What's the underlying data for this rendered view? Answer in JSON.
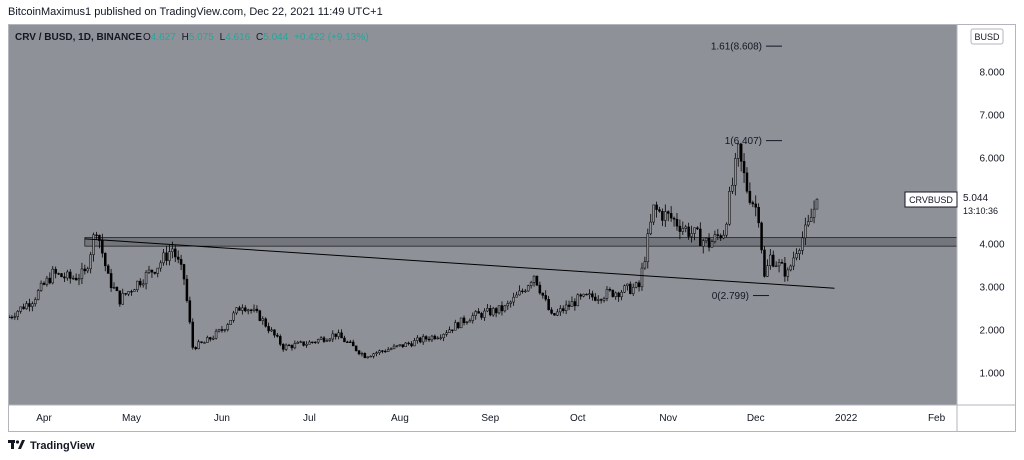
{
  "header": {
    "published_text": "BitcoinMaximus1 published on TradingView.com, Dec 22, 2021 11:49 UTC+1"
  },
  "legend": {
    "symbol": "CRV / BUSD, 1D, BINANCE",
    "o_label": "O",
    "o_value": "4.627",
    "h_label": "H",
    "h_value": "5.075",
    "l_label": "L",
    "l_value": "4.616",
    "c_label": "C",
    "c_value": "5.044",
    "change": "+0.422 (+9.13%)"
  },
  "currency_badge": "BUSD",
  "price_tag": {
    "symbol": "CRVBUSD",
    "price": "5.044",
    "countdown": "13:10:36"
  },
  "footer": {
    "brand": "TradingView"
  },
  "colors": {
    "plot_bg": "#8f9198",
    "candle": "#000000",
    "axis_text": "#131722",
    "zone_fill": "#6f7178",
    "trendline": "#000000"
  },
  "chart_data": {
    "type": "candlestick",
    "title": "",
    "y_ticks": [
      8.0,
      7.0,
      6.0,
      5.0,
      4.0,
      3.0,
      2.0,
      1.0
    ],
    "y_tick_labels": [
      "8.000",
      "7.000",
      "6.000",
      "5.000",
      "4.000",
      "3.000",
      "2.000",
      "1.000"
    ],
    "ylim": [
      0.25,
      9.1
    ],
    "x_range": [
      "2021-03-20",
      "2022-02-08"
    ],
    "x_ticks": [
      {
        "date": "2021-04-01",
        "label": "Apr"
      },
      {
        "date": "2021-05-01",
        "label": "May"
      },
      {
        "date": "2021-06-01",
        "label": "Jun"
      },
      {
        "date": "2021-07-01",
        "label": "Jul"
      },
      {
        "date": "2021-08-01",
        "label": "Aug"
      },
      {
        "date": "2021-09-01",
        "label": "Sep"
      },
      {
        "date": "2021-10-01",
        "label": "Oct"
      },
      {
        "date": "2021-11-01",
        "label": "Nov"
      },
      {
        "date": "2021-12-01",
        "label": "Dec"
      },
      {
        "date": "2022-01-01",
        "label": "2022"
      },
      {
        "date": "2022-02-01",
        "label": "Feb"
      }
    ],
    "price_path": [
      {
        "date": "2021-03-20",
        "close": 2.3
      },
      {
        "date": "2021-03-28",
        "close": 2.7
      },
      {
        "date": "2021-04-04",
        "close": 3.3
      },
      {
        "date": "2021-04-10",
        "close": 3.2
      },
      {
        "date": "2021-04-15",
        "close": 3.3
      },
      {
        "date": "2021-04-19",
        "close": 4.4
      },
      {
        "date": "2021-04-23",
        "close": 3.2
      },
      {
        "date": "2021-04-27",
        "close": 2.7
      },
      {
        "date": "2021-05-03",
        "close": 3.1
      },
      {
        "date": "2021-05-10",
        "close": 3.5
      },
      {
        "date": "2021-05-15",
        "close": 3.9
      },
      {
        "date": "2021-05-19",
        "close": 3.2
      },
      {
        "date": "2021-05-22",
        "close": 1.6
      },
      {
        "date": "2021-05-26",
        "close": 1.7
      },
      {
        "date": "2021-06-01",
        "close": 2.0
      },
      {
        "date": "2021-06-08",
        "close": 2.6
      },
      {
        "date": "2021-06-14",
        "close": 2.3
      },
      {
        "date": "2021-06-22",
        "close": 1.6
      },
      {
        "date": "2021-07-01",
        "close": 1.7
      },
      {
        "date": "2021-07-10",
        "close": 1.9
      },
      {
        "date": "2021-07-20",
        "close": 1.4
      },
      {
        "date": "2021-07-31",
        "close": 1.6
      },
      {
        "date": "2021-08-15",
        "close": 1.9
      },
      {
        "date": "2021-08-25",
        "close": 2.3
      },
      {
        "date": "2021-09-06",
        "close": 2.5
      },
      {
        "date": "2021-09-12",
        "close": 2.9
      },
      {
        "date": "2021-09-16",
        "close": 3.3
      },
      {
        "date": "2021-09-22",
        "close": 2.3
      },
      {
        "date": "2021-10-01",
        "close": 2.7
      },
      {
        "date": "2021-10-15",
        "close": 2.9
      },
      {
        "date": "2021-10-22",
        "close": 3.0
      },
      {
        "date": "2021-10-27",
        "close": 4.8
      },
      {
        "date": "2021-11-02",
        "close": 4.6
      },
      {
        "date": "2021-11-08",
        "close": 4.3
      },
      {
        "date": "2021-11-15",
        "close": 4.0
      },
      {
        "date": "2021-11-20",
        "close": 4.3
      },
      {
        "date": "2021-11-25",
        "close": 6.1
      },
      {
        "date": "2021-11-28",
        "close": 5.3
      },
      {
        "date": "2021-12-02",
        "close": 4.7
      },
      {
        "date": "2021-12-04",
        "close": 3.2
      },
      {
        "date": "2021-12-06",
        "close": 3.7
      },
      {
        "date": "2021-12-09",
        "close": 3.5
      },
      {
        "date": "2021-12-12",
        "close": 3.3
      },
      {
        "date": "2021-12-15",
        "close": 3.9
      },
      {
        "date": "2021-12-19",
        "close": 4.4
      },
      {
        "date": "2021-12-22",
        "close": 5.044
      }
    ],
    "resistance_zone": {
      "low": 3.95,
      "high": 4.15,
      "from": "2021-04-15",
      "to": "2022-02-08"
    },
    "trendline": {
      "from": {
        "date": "2021-04-15",
        "value": 4.12
      },
      "to": {
        "date": "2021-12-28",
        "value": 2.97
      }
    },
    "fib_levels": [
      {
        "label": "1.61(8.608)",
        "value": 8.608
      },
      {
        "label": "1(6.407)",
        "value": 6.407
      },
      {
        "label": "0(2.799)",
        "value": 2.799
      }
    ]
  }
}
